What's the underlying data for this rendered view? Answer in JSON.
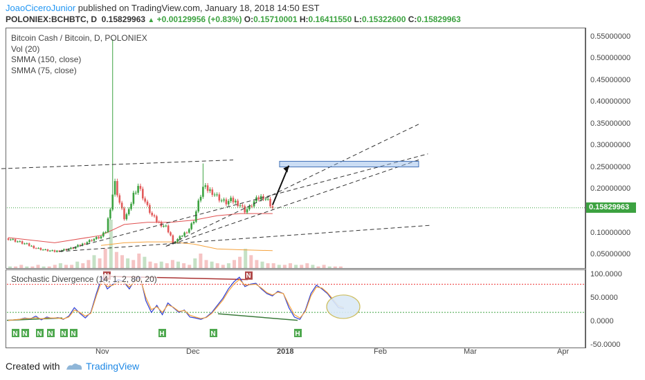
{
  "header": {
    "author": "JoaoCiceroJunior",
    "published_text": "published on TradingView.com, January 18, 2018 14:50 EST",
    "symbol": "POLONIEX:BCHBTC, D",
    "last": "0.15829963",
    "change_arrow": "▲",
    "change": "+0.00129956 (+0.83%)",
    "o_label": "O:",
    "o_value": "0.15710001",
    "h_label": "H:",
    "h_value": "0.16411550",
    "l_label": "L:",
    "l_value": "0.15322600",
    "c_label": "C:",
    "c_value": "0.15829963"
  },
  "legend": {
    "title": "Bitcoin Cash / Bitcoin, D, POLONIEX",
    "vol": "Vol (20)",
    "smma150": "SMMA (150, close)",
    "smma75": "SMMA (75, close)"
  },
  "stoch_legend": "Stochastic Divergence (14, 1, 2, 80, 20)",
  "price_tag": "0.15829963",
  "footer": {
    "created_with": "Created with",
    "brand": "TradingView"
  },
  "colors": {
    "up": "#3ca240",
    "down": "#e25a5a",
    "accent": "#2196f3",
    "smma": "#e05050",
    "stoch_k": "#2b3dd6",
    "stoch_d": "#f5a23c"
  },
  "chart_data": [
    {
      "type": "candlestick",
      "title": "Bitcoin Cash / Bitcoin, D, POLONIEX",
      "y_ticks": [
        "0.55000000",
        "0.50000000",
        "0.45000000",
        "0.40000000",
        "0.35000000",
        "0.30000000",
        "0.25000000",
        "0.20000000",
        "0.15000000",
        "0.10000000",
        "0.05000000"
      ],
      "ylim": [
        0.02,
        0.57
      ],
      "x_ticks": [
        "Nov",
        "Dec",
        "2018",
        "Feb",
        "Mar",
        "Apr"
      ],
      "x_ticks_bold": [
        "2018"
      ],
      "last_price": 0.15829963,
      "close_path": [
        [
          0,
          0.088
        ],
        [
          4,
          0.081
        ],
        [
          8,
          0.074
        ],
        [
          12,
          0.066
        ],
        [
          16,
          0.061
        ],
        [
          20,
          0.058
        ],
        [
          24,
          0.062
        ],
        [
          28,
          0.066
        ],
        [
          32,
          0.075
        ],
        [
          36,
          0.085
        ],
        [
          40,
          0.092
        ],
        [
          42,
          0.104
        ],
        [
          44,
          0.16
        ],
        [
          45,
          0.19
        ],
        [
          46,
          0.215
        ],
        [
          48,
          0.17
        ],
        [
          50,
          0.135
        ],
        [
          52,
          0.15
        ],
        [
          54,
          0.19
        ],
        [
          56,
          0.21
        ],
        [
          58,
          0.185
        ],
        [
          60,
          0.16
        ],
        [
          62,
          0.14
        ],
        [
          64,
          0.128
        ],
        [
          66,
          0.12
        ],
        [
          68,
          0.115
        ],
        [
          70,
          0.095
        ],
        [
          71,
          0.075
        ],
        [
          72,
          0.082
        ],
        [
          74,
          0.09
        ],
        [
          76,
          0.1
        ],
        [
          78,
          0.11
        ],
        [
          80,
          0.13
        ],
        [
          82,
          0.17
        ],
        [
          84,
          0.205
        ],
        [
          86,
          0.2
        ],
        [
          88,
          0.195
        ],
        [
          90,
          0.185
        ],
        [
          92,
          0.175
        ],
        [
          94,
          0.17
        ],
        [
          96,
          0.175
        ],
        [
          98,
          0.172
        ],
        [
          100,
          0.165
        ],
        [
          102,
          0.152
        ],
        [
          104,
          0.158
        ],
        [
          106,
          0.172
        ],
        [
          108,
          0.18
        ],
        [
          110,
          0.185
        ],
        [
          112,
          0.175
        ],
        [
          114,
          0.158
        ]
      ],
      "spike": {
        "index": 45,
        "high": 0.545
      },
      "spike2": {
        "index": 84,
        "high": 0.26
      },
      "smma_75": [
        [
          0,
          0.09
        ],
        [
          20,
          0.078
        ],
        [
          40,
          0.095
        ],
        [
          50,
          0.12
        ],
        [
          60,
          0.125
        ],
        [
          70,
          0.125
        ],
        [
          80,
          0.13
        ],
        [
          90,
          0.14
        ],
        [
          100,
          0.145
        ],
        [
          114,
          0.145
        ]
      ],
      "smma_150": [
        [
          40,
          0.072
        ],
        [
          50,
          0.078
        ],
        [
          60,
          0.08
        ],
        [
          70,
          0.08
        ],
        [
          80,
          0.075
        ],
        [
          90,
          0.064
        ],
        [
          100,
          0.062
        ],
        [
          114,
          0.06
        ]
      ],
      "volume": [
        1,
        1,
        2,
        1,
        1,
        2,
        1,
        1,
        2,
        3,
        2,
        2,
        4,
        3,
        5,
        8,
        6,
        12,
        30,
        10,
        8,
        6,
        5,
        9,
        7,
        4,
        3,
        4,
        3,
        5,
        4,
        3,
        2,
        6,
        9,
        5,
        4,
        3,
        2,
        3,
        5,
        7,
        12,
        8,
        5,
        4,
        3,
        3,
        2,
        2,
        3,
        2,
        2,
        3,
        2,
        1,
        2,
        1,
        1,
        1
      ],
      "annotations": {
        "trendlines": [
          {
            "from": [
              -3,
              0.248
            ],
            "to": [
              97,
              0.268
            ]
          },
          {
            "from": [
              22,
              0.058
            ],
            "to": [
              181,
              0.282
            ]
          },
          {
            "from": [
              68,
              0.07
            ],
            "to": [
              177,
              0.35
            ]
          },
          {
            "from": [
              68,
              0.07
            ],
            "to": [
              178,
              0.27
            ]
          },
          {
            "from": [
              22,
              0.058
            ],
            "to": [
              182,
              0.118
            ]
          }
        ],
        "target_box": {
          "from": [
            117,
            0.265
          ],
          "to": [
            177,
            0.252
          ]
        },
        "arrow": {
          "from": [
            114,
            0.165
          ],
          "to": [
            121,
            0.255
          ]
        },
        "ellipse_fill": "#dbe9f7"
      }
    },
    {
      "type": "line",
      "title": "Stochastic Divergence (14, 1, 2, 80, 20)",
      "y_ticks": [
        "100.0000",
        "50.0000",
        "0.0000",
        "-50.0000"
      ],
      "ylim": [
        -55,
        110
      ],
      "overbought": 80,
      "oversold": 20,
      "series": [
        {
          "values": [
            3,
            4,
            5,
            8,
            6,
            12,
            4,
            10,
            7,
            9,
            5,
            12,
            30,
            18,
            8,
            20,
            60,
            95,
            70,
            80,
            90,
            85,
            70,
            90,
            95,
            45,
            20,
            35,
            15,
            40,
            30,
            20,
            25,
            10,
            8,
            5,
            10,
            20,
            35,
            50,
            70,
            85,
            95,
            75,
            80,
            82,
            70,
            60,
            55,
            65,
            60,
            30,
            10,
            5,
            25,
            60,
            78,
            70,
            60,
            45,
            30,
            28
          ]
        },
        {
          "values": [
            3,
            4,
            5,
            7,
            7,
            9,
            6,
            8,
            8,
            8,
            6,
            10,
            25,
            20,
            12,
            18,
            55,
            88,
            75,
            78,
            85,
            85,
            74,
            86,
            92,
            52,
            26,
            32,
            20,
            36,
            31,
            22,
            24,
            14,
            10,
            7,
            9,
            18,
            32,
            46,
            65,
            80,
            90,
            78,
            79,
            80,
            72,
            62,
            57,
            63,
            60,
            36,
            15,
            8,
            22,
            55,
            74,
            72,
            62,
            48,
            34,
            30
          ]
        }
      ],
      "divergence_labels": [
        "N",
        "N",
        "N",
        "N",
        "N",
        "N",
        "H",
        "N",
        "H"
      ],
      "signal_top_labels": [
        "N",
        "N"
      ]
    }
  ]
}
